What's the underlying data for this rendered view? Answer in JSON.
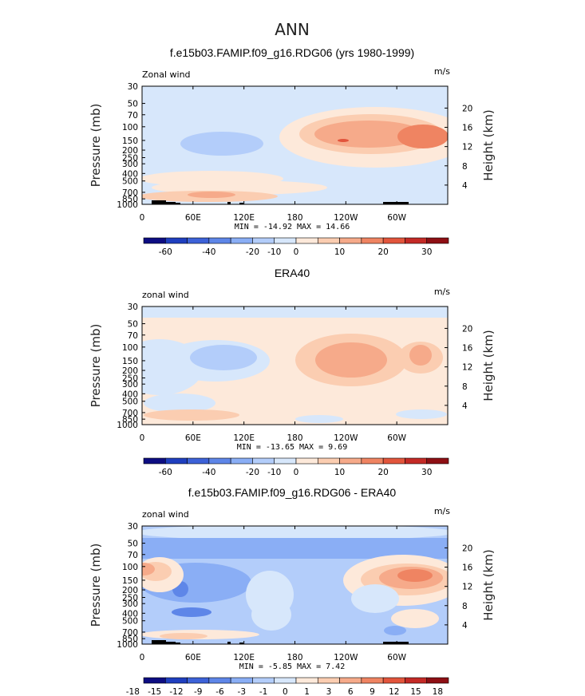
{
  "main_title": "ANN",
  "chart_data": [
    {
      "type": "contour",
      "title": "f.e15b03.FAMIP.f09_g16.RDG06 (yrs 1980-1999)",
      "variable_label": "Zonal wind",
      "units": "m/s",
      "ylabel_left": "Pressure (mb)",
      "ylabel_right": "Height (km)",
      "x_ticks": [
        "0",
        "60E",
        "120E",
        "180",
        "120W",
        "60W"
      ],
      "y_ticks_left": [
        "30",
        "50",
        "70",
        "100",
        "150",
        "200",
        "250",
        "300",
        "400",
        "500",
        "700",
        "850",
        "1000"
      ],
      "y_ticks_right": [
        "20",
        "16",
        "12",
        "8",
        "4"
      ],
      "min_max": "MIN = -14.92   MAX =  14.66",
      "min": -14.92,
      "max": 14.66,
      "colorbar_labels": [
        "-60",
        "-40",
        "-20",
        "-10",
        "0",
        "10",
        "20",
        "30"
      ]
    },
    {
      "type": "contour",
      "title": "ERA40",
      "variable_label": "zonal wind",
      "units": "m/s",
      "ylabel_left": "Pressure (mb)",
      "ylabel_right": "Height (km)",
      "x_ticks": [
        "0",
        "60E",
        "120E",
        "180",
        "120W",
        "60W"
      ],
      "y_ticks_left": [
        "30",
        "50",
        "70",
        "100",
        "150",
        "200",
        "250",
        "300",
        "400",
        "500",
        "700",
        "850",
        "1000"
      ],
      "y_ticks_right": [
        "20",
        "16",
        "12",
        "8",
        "4"
      ],
      "min_max": "MIN = -13.65   MAX =   9.69",
      "min": -13.65,
      "max": 9.69,
      "colorbar_labels": [
        "-60",
        "-40",
        "-20",
        "-10",
        "0",
        "10",
        "20",
        "30"
      ]
    },
    {
      "type": "contour",
      "title": "f.e15b03.FAMIP.f09_g16.RDG06 - ERA40",
      "variable_label": "zonal wind",
      "units": "m/s",
      "ylabel_left": "Pressure (mb)",
      "ylabel_right": "Height (km)",
      "x_ticks": [
        "0",
        "60E",
        "120E",
        "180",
        "120W",
        "60W"
      ],
      "y_ticks_left": [
        "30",
        "50",
        "70",
        "100",
        "150",
        "200",
        "250",
        "300",
        "400",
        "500",
        "700",
        "850",
        "1000"
      ],
      "y_ticks_right": [
        "20",
        "16",
        "12",
        "8",
        "4"
      ],
      "min_max": "MIN =  -5.85   MAX =   7.42",
      "min": -5.85,
      "max": 7.42,
      "colorbar_labels": [
        "-18",
        "-15",
        "-12",
        "-9",
        "-6",
        "-3",
        "-1",
        "0",
        "1",
        "3",
        "6",
        "9",
        "12",
        "15",
        "18"
      ]
    }
  ],
  "colors": {
    "palette": [
      "#0d0d82",
      "#1f3fbf",
      "#3d62d8",
      "#5e86e8",
      "#8aaef5",
      "#b3cdfa",
      "#d7e7fb",
      "#fde9da",
      "#fbcdb1",
      "#f6aa8a",
      "#ef8462",
      "#e2553c",
      "#c42a26",
      "#8e0f14"
    ]
  }
}
